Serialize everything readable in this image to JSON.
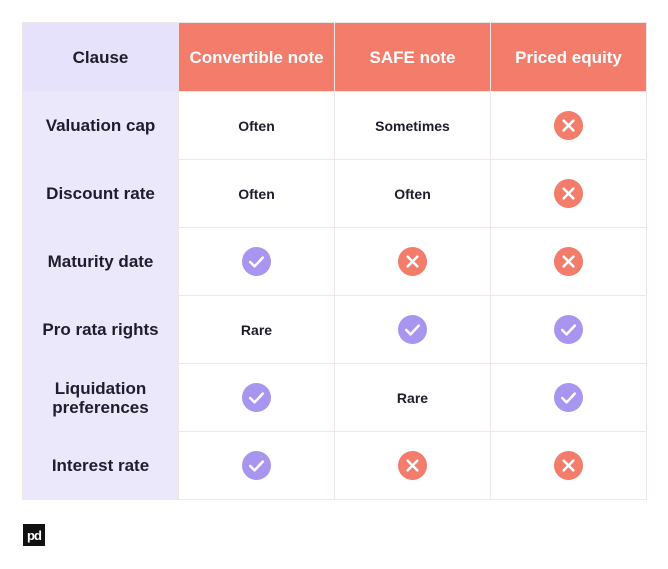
{
  "table": {
    "header": [
      "Clause",
      "Convertible note",
      "SAFE note",
      "Priced equity"
    ],
    "rows": [
      [
        "Valuation cap",
        "Often",
        "Sometimes",
        null
      ],
      [
        "Discount rate",
        "Often",
        "Often",
        null
      ],
      [
        "Maturity date",
        null,
        null,
        null
      ],
      [
        "Pro rata rights",
        "Rare",
        null,
        null
      ],
      [
        "Liquidation preferences",
        null,
        "Rare",
        null
      ],
      [
        "Interest rate",
        null,
        null,
        null
      ]
    ]
  },
  "logo": "pd"
}
